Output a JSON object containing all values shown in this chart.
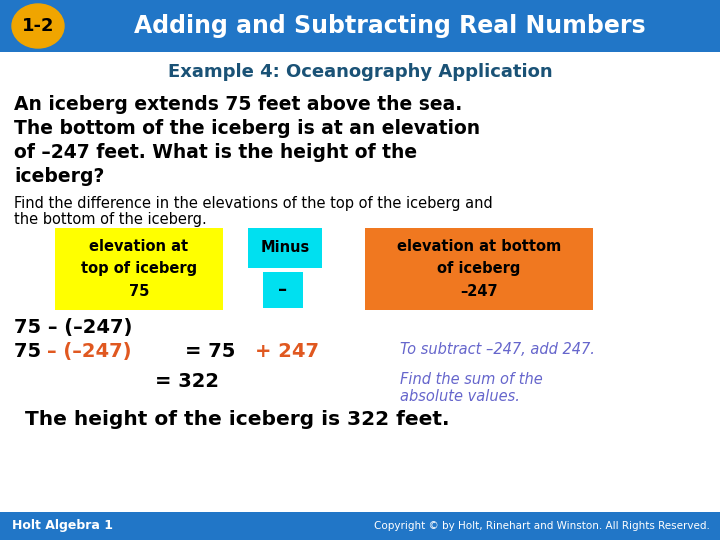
{
  "header_bg_color": "#2176c7",
  "header_text": "Adding and Subtracting Real Numbers",
  "header_text_color": "#ffffff",
  "badge_bg_color": "#f0a500",
  "badge_text": "1-2",
  "badge_text_color": "#000000",
  "example_title": "Example 4: Oceanography Application",
  "example_title_color": "#1a5276",
  "body_bold_line1": "An iceberg extends 75 feet above the sea.",
  "body_bold_line2": "The bottom of the iceberg is at an elevation",
  "body_bold_line3": "of –247 feet. What is the height of the",
  "body_bold_line4": "iceberg?",
  "body_bold_color": "#000000",
  "body_normal_line1": "Find the difference in the elevations of the top of the iceberg and",
  "body_normal_line2": "the bottom of the iceberg.",
  "body_normal_color": "#000000",
  "box1_color": "#ffff00",
  "box1_line1": "elevation at",
  "box1_line2": "top of iceberg",
  "box1_line3": "75",
  "box2_color": "#00e0f0",
  "box2_minus_label": "Minus",
  "box2_minus_sign": "–",
  "box3_color": "#f07820",
  "box3_line1": "elevation at bottom",
  "box3_line2": "of iceberg",
  "box3_line3": "–247",
  "eq1_black": "75 – (–247)",
  "eq2_black1": "75 ",
  "eq2_orange1": "– (–247)",
  "eq2_black2": " = 75 ",
  "eq2_orange2": "+ 247",
  "eq2_note": "To subtract –247, add 247.",
  "eq2_note_color": "#6666cc",
  "eq3_text": "= 322",
  "eq3_note_line1": "Find the sum of the",
  "eq3_note_line2": "absolute values.",
  "eq3_note_color": "#6666cc",
  "final_text": "The height of the iceberg is 322 feet.",
  "final_text_color": "#000000",
  "footer_bg": "#2176c7",
  "footer_left": "Holt Algebra 1",
  "footer_right": "Copyright © by Holt, Rinehart and Winston. All Rights Reserved.",
  "footer_text_color": "#ffffff",
  "bg_color": "#ffffff",
  "orange_color": "#e05820"
}
